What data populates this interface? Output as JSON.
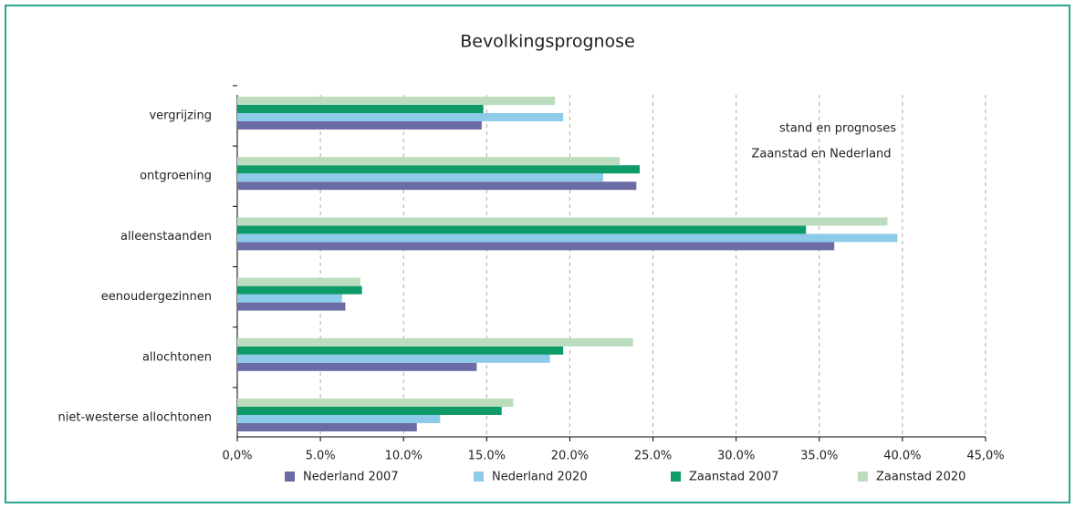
{
  "chart_data": {
    "type": "barh",
    "title": "Bevolkingsprognose",
    "annotations": [
      "stand en prognoses",
      "Zaanstad en Nederland"
    ],
    "categories": [
      "vergrijzing",
      "ontgroening",
      "alleenstaanden",
      "eenoudergezinnen",
      "allochtonen",
      "niet-westerse allochtonen"
    ],
    "series": [
      {
        "name": "Nederland 2007",
        "color": "#6b6ba6",
        "values": [
          14.7,
          24.0,
          35.9,
          6.5,
          14.4,
          10.8
        ]
      },
      {
        "name": "Nederland 2020",
        "color": "#8ecae9",
        "values": [
          19.6,
          22.0,
          39.7,
          6.3,
          18.8,
          12.2
        ]
      },
      {
        "name": "Zaanstad  2007",
        "color": "#0f9b68",
        "values": [
          14.8,
          24.2,
          34.2,
          7.5,
          19.6,
          15.9
        ]
      },
      {
        "name": "Zaanstad  2020",
        "color": "#bcdcbe",
        "values": [
          19.1,
          23.0,
          39.1,
          7.4,
          23.8,
          16.6
        ]
      }
    ],
    "xlim": [
      0,
      45
    ],
    "xticks": [
      {
        "value": 0,
        "label": "0,0%"
      },
      {
        "value": 5,
        "label": "5.0%"
      },
      {
        "value": 10,
        "label": "10.0%"
      },
      {
        "value": 15,
        "label": "15.0%"
      },
      {
        "value": 20,
        "label": "20.0%"
      },
      {
        "value": 25,
        "label": "25.0%"
      },
      {
        "value": 30,
        "label": "30.0%"
      },
      {
        "value": 35,
        "label": "35.0%"
      },
      {
        "value": 40,
        "label": "40.0%"
      },
      {
        "value": 45,
        "label": "45,0%"
      }
    ],
    "grid": true
  }
}
